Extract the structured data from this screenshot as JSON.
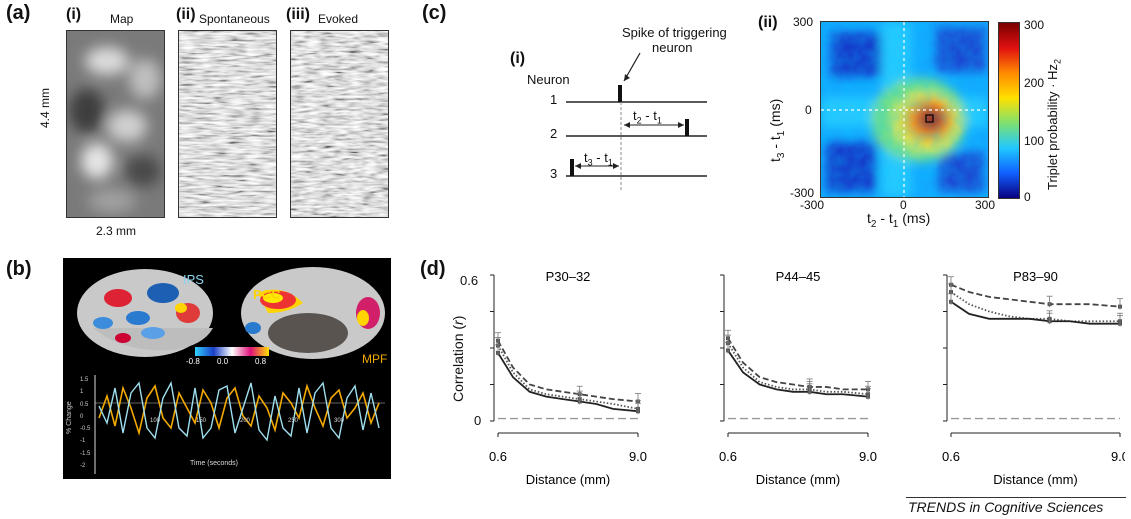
{
  "panel_a": {
    "label": "(a)",
    "sub_labels": [
      "(i)",
      "(ii)",
      "(iii)"
    ],
    "titles": [
      "Map",
      "Spontaneous",
      "Evoked"
    ],
    "height_label": "4.4 mm",
    "width_label": "2.3 mm"
  },
  "panel_b": {
    "label": "(b)",
    "region_labels": [
      "IPS",
      "PCC",
      "MPF"
    ],
    "colorbar_ticks": [
      "-0.8",
      "0.0",
      "0.8"
    ],
    "ylabel": "% Change",
    "yticks": [
      "1.5",
      "1",
      "0.5",
      "0",
      "-0.5",
      "-1",
      "-1.5",
      "-2"
    ],
    "xticks": [
      "100",
      "150",
      "200",
      "250",
      "300"
    ],
    "xlabel": "Time (seconds)"
  },
  "panel_c": {
    "label": "(c)",
    "sub_i": "(i)",
    "sub_ii": "(ii)",
    "neuron_header": "Neuron",
    "neuron_rows": [
      "1",
      "2",
      "3"
    ],
    "spike_annotation_line1": "Spike of triggering",
    "spike_annotation_line2": "neuron",
    "interval_t21": "t",
    "interval_t31": "t",
    "heatmap": {
      "xlabel": "t",
      "ylabel": "t",
      "xlabel_full": "t2 - t1 (ms)",
      "ylabel_full": "t3 - t1 (ms)",
      "xticks": [
        "-300",
        "0",
        "300"
      ],
      "yticks": [
        "300",
        "0",
        "-300"
      ],
      "colorbar_ticks": [
        "300",
        "200",
        "100",
        "0"
      ],
      "colorbar_label": "Triplet probability · Hz",
      "colorbar_label_sub": "2"
    }
  },
  "panel_d": {
    "label": "(d)",
    "ylabel": "Correlation (r)",
    "xlabel": "Distance (mm)",
    "yticks": [
      "0.6",
      "0"
    ],
    "xticks": [
      "0.6",
      "9.0"
    ]
  },
  "footer": "TRENDS in Cognitive Sciences",
  "chart_data": [
    {
      "type": "line",
      "title": "P30–32",
      "xlabel": "Distance (mm)",
      "ylabel": "Correlation (r)",
      "xlim": [
        0.6,
        9.0
      ],
      "ylim": [
        0,
        0.6
      ],
      "x": [
        0.6,
        1.5,
        2.5,
        3.5,
        4.5,
        5.5,
        6.5,
        7.5,
        9.0
      ],
      "series": [
        {
          "values": [
            0.33,
            0.22,
            0.15,
            0.13,
            0.12,
            0.11,
            0.1,
            0.09,
            0.08
          ]
        },
        {
          "values": [
            0.31,
            0.2,
            0.13,
            0.11,
            0.1,
            0.09,
            0.08,
            0.07,
            0.05
          ]
        },
        {
          "values": [
            0.28,
            0.18,
            0.12,
            0.1,
            0.09,
            0.08,
            0.07,
            0.05,
            0.04
          ]
        },
        {
          "values": [
            0.01,
            0.01,
            0.01,
            0.01,
            0.01,
            0.01,
            0.01,
            0.01,
            0.01
          ]
        }
      ]
    },
    {
      "type": "line",
      "title": "P44–45",
      "xlabel": "Distance (mm)",
      "ylabel": "Correlation (r)",
      "xlim": [
        0.6,
        9.0
      ],
      "ylim": [
        0,
        0.6
      ],
      "x": [
        0.6,
        1.5,
        2.5,
        3.5,
        4.5,
        5.5,
        6.5,
        7.5,
        9.0
      ],
      "series": [
        {
          "values": [
            0.34,
            0.24,
            0.18,
            0.16,
            0.15,
            0.14,
            0.14,
            0.13,
            0.13
          ]
        },
        {
          "values": [
            0.32,
            0.22,
            0.16,
            0.14,
            0.13,
            0.13,
            0.12,
            0.12,
            0.11
          ]
        },
        {
          "values": [
            0.29,
            0.2,
            0.15,
            0.13,
            0.12,
            0.12,
            0.11,
            0.11,
            0.1
          ]
        },
        {
          "values": [
            0.01,
            0.01,
            0.01,
            0.01,
            0.01,
            0.01,
            0.01,
            0.01,
            0.01
          ]
        }
      ]
    },
    {
      "type": "line",
      "title": "P83–90",
      "xlabel": "Distance (mm)",
      "ylabel": "Correlation (r)",
      "xlim": [
        0.6,
        9.0
      ],
      "ylim": [
        0,
        0.6
      ],
      "x": [
        0.6,
        1.5,
        2.5,
        3.5,
        4.5,
        5.5,
        6.5,
        7.5,
        9.0
      ],
      "series": [
        {
          "values": [
            0.56,
            0.53,
            0.51,
            0.5,
            0.49,
            0.48,
            0.48,
            0.48,
            0.47
          ]
        },
        {
          "values": [
            0.53,
            0.48,
            0.45,
            0.43,
            0.42,
            0.42,
            0.41,
            0.41,
            0.41
          ]
        },
        {
          "values": [
            0.49,
            0.44,
            0.42,
            0.42,
            0.42,
            0.41,
            0.41,
            0.4,
            0.4
          ]
        },
        {
          "values": [
            0.01,
            0.01,
            0.01,
            0.01,
            0.01,
            0.01,
            0.01,
            0.01,
            0.01
          ]
        }
      ]
    }
  ]
}
